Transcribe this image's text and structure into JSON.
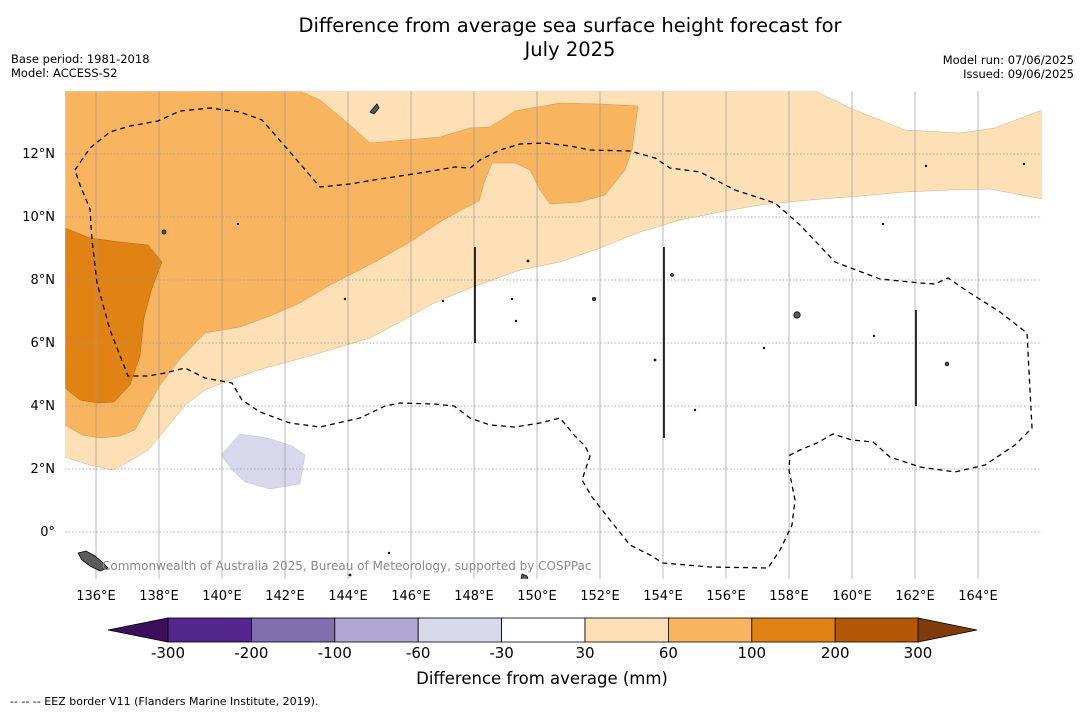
{
  "header": {
    "title_line1": "Difference from average sea surface height forecast for",
    "title_line2": "July 2025",
    "base_period": "Base period: 1981-2018",
    "model": "Model: ACCESS-S2",
    "model_run": "Model run: 07/06/2025",
    "issued": "Issued: 09/06/2025"
  },
  "map": {
    "lat_labels": [
      "12°N",
      "10°N",
      "8°N",
      "6°N",
      "4°N",
      "2°N",
      "0°"
    ],
    "lon_labels": [
      "136°E",
      "138°E",
      "140°E",
      "142°E",
      "144°E",
      "146°E",
      "148°E",
      "150°E",
      "152°E",
      "154°E",
      "156°E",
      "158°E",
      "160°E",
      "162°E",
      "164°E"
    ],
    "credit": "Commonwealth of Australia 2025, Bureau of Meteorology, supported by COSPPac"
  },
  "colorbar": {
    "title": "Difference from average (mm)",
    "tick_labels": [
      "-300",
      "-200",
      "-100",
      "-60",
      "-30",
      "30",
      "60",
      "100",
      "200",
      "300"
    ],
    "colors": [
      "#3b0f5c",
      "#54278f",
      "#7f6fae",
      "#b0a8d2",
      "#d7d8ec",
      "#ffffff",
      "#fde0b5",
      "#f9b45f",
      "#e08214",
      "#b35806",
      "#7f3b08"
    ]
  },
  "footnote": "--  --  -- EEZ border V11 (Flanders Marine Institute, 2019)."
}
